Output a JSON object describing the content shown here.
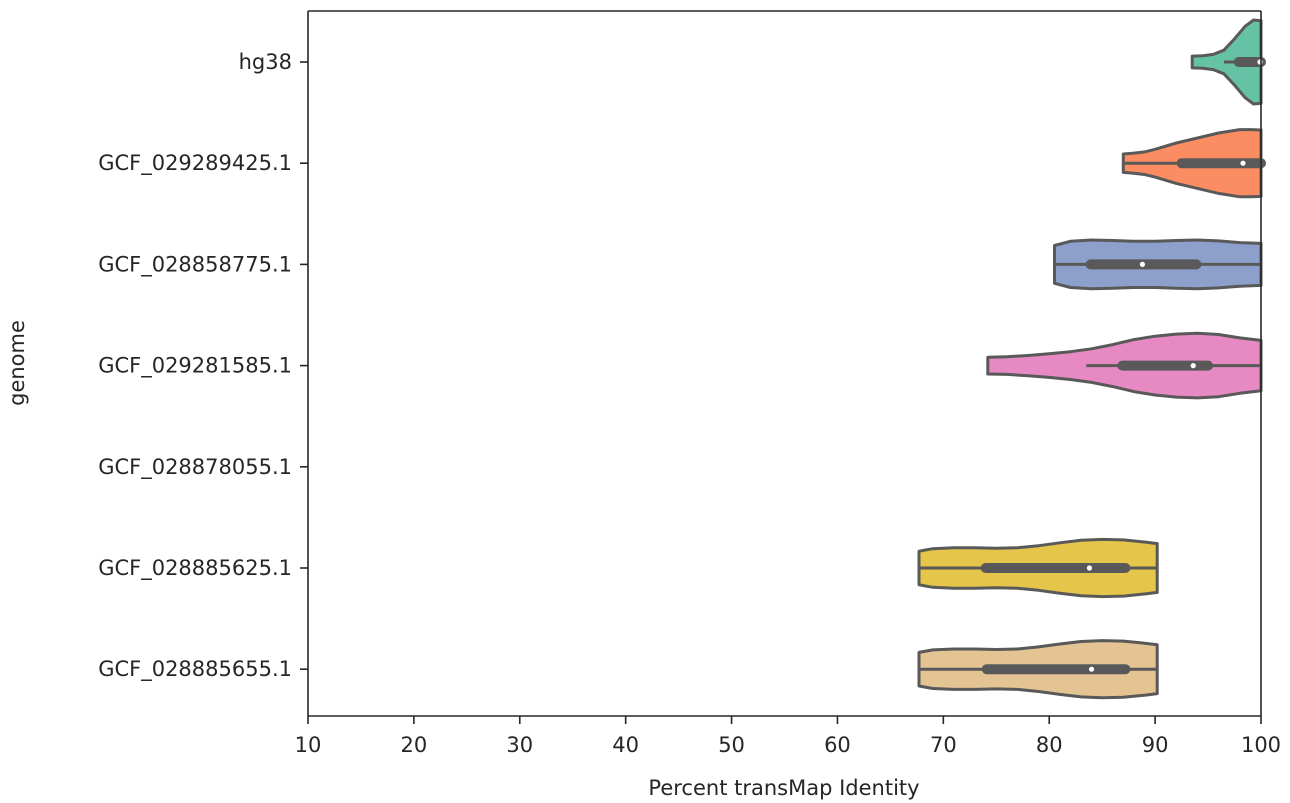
{
  "chart_data": {
    "type": "violin",
    "orientation": "horizontal",
    "xlabel": "Percent transMap Identity",
    "ylabel": "genome",
    "xlim": [
      10,
      100
    ],
    "xticks": [
      "10",
      "20",
      "30",
      "40",
      "50",
      "60",
      "70",
      "80",
      "90",
      "100"
    ],
    "grid": false,
    "categories": [
      "hg38",
      "GCF_029289425.1",
      "GCF_028858775.1",
      "GCF_029281585.1",
      "GCF_028878055.1",
      "GCF_028885625.1",
      "GCF_028885655.1"
    ],
    "series": [
      {
        "category": "hg38",
        "color": "#66c2a5",
        "min": 93.5,
        "q1": 97.9,
        "median": 99.9,
        "q3": 100,
        "max": 100,
        "whisker_low": 96.5,
        "density": [
          [
            93.5,
            0.14
          ],
          [
            94.5,
            0.15
          ],
          [
            95.5,
            0.18
          ],
          [
            96.5,
            0.28
          ],
          [
            97.5,
            0.55
          ],
          [
            98.5,
            0.85
          ],
          [
            99.3,
            1.0
          ],
          [
            100,
            0.98
          ]
        ]
      },
      {
        "category": "GCF_029289425.1",
        "color": "#fc8d62",
        "min": 87,
        "q1": 92.5,
        "median": 98.3,
        "q3": 100,
        "max": 100,
        "whisker_low": 87,
        "density": [
          [
            87,
            0.22
          ],
          [
            88,
            0.24
          ],
          [
            89,
            0.27
          ],
          [
            90,
            0.33
          ],
          [
            92,
            0.48
          ],
          [
            94,
            0.6
          ],
          [
            96,
            0.72
          ],
          [
            98,
            0.8
          ],
          [
            99,
            0.8
          ],
          [
            100,
            0.79
          ]
        ]
      },
      {
        "category": "GCF_028858775.1",
        "color": "#8da0cb",
        "min": 80.5,
        "q1": 83.9,
        "median": 88.8,
        "q3": 93.9,
        "max": 100,
        "whisker_low": 80.5,
        "density": [
          [
            80.5,
            0.45
          ],
          [
            82,
            0.55
          ],
          [
            84,
            0.58
          ],
          [
            86,
            0.57
          ],
          [
            88,
            0.55
          ],
          [
            90,
            0.55
          ],
          [
            92,
            0.57
          ],
          [
            94,
            0.58
          ],
          [
            96,
            0.56
          ],
          [
            98,
            0.52
          ],
          [
            100,
            0.5
          ]
        ]
      },
      {
        "category": "GCF_029281585.1",
        "color": "#e78ac3",
        "min": 74.2,
        "q1": 86.9,
        "median": 93.6,
        "q3": 95,
        "max": 100,
        "whisker_low": 83.5,
        "density": [
          [
            74.2,
            0.2
          ],
          [
            76,
            0.21
          ],
          [
            78,
            0.24
          ],
          [
            80,
            0.28
          ],
          [
            82,
            0.33
          ],
          [
            84,
            0.4
          ],
          [
            86,
            0.5
          ],
          [
            88,
            0.62
          ],
          [
            90,
            0.7
          ],
          [
            92,
            0.75
          ],
          [
            94,
            0.77
          ],
          [
            96,
            0.74
          ],
          [
            98,
            0.66
          ],
          [
            100,
            0.6
          ]
        ]
      },
      {
        "category": "GCF_028878055.1",
        "color": "#a6d854"
      },
      {
        "category": "GCF_028885625.1",
        "color": "#e5c64a",
        "min": 67.7,
        "q1": 74,
        "median": 83.8,
        "q3": 87.2,
        "max": 90.2,
        "whisker_low": 67.7,
        "density": [
          [
            67.7,
            0.4
          ],
          [
            69,
            0.46
          ],
          [
            71,
            0.48
          ],
          [
            73,
            0.48
          ],
          [
            75,
            0.47
          ],
          [
            77,
            0.48
          ],
          [
            79,
            0.53
          ],
          [
            81,
            0.6
          ],
          [
            83,
            0.66
          ],
          [
            85,
            0.68
          ],
          [
            87,
            0.67
          ],
          [
            89,
            0.62
          ],
          [
            90.2,
            0.58
          ]
        ]
      },
      {
        "category": "GCF_028885655.1",
        "color": "#e5c494",
        "min": 67.7,
        "q1": 74.1,
        "median": 84,
        "q3": 87.2,
        "max": 90.2,
        "whisker_low": 67.7,
        "density": [
          [
            67.7,
            0.4
          ],
          [
            69,
            0.46
          ],
          [
            71,
            0.48
          ],
          [
            73,
            0.48
          ],
          [
            75,
            0.47
          ],
          [
            77,
            0.48
          ],
          [
            79,
            0.53
          ],
          [
            81,
            0.6
          ],
          [
            83,
            0.66
          ],
          [
            85,
            0.68
          ],
          [
            87,
            0.67
          ],
          [
            89,
            0.62
          ],
          [
            90.2,
            0.58
          ]
        ]
      }
    ]
  }
}
